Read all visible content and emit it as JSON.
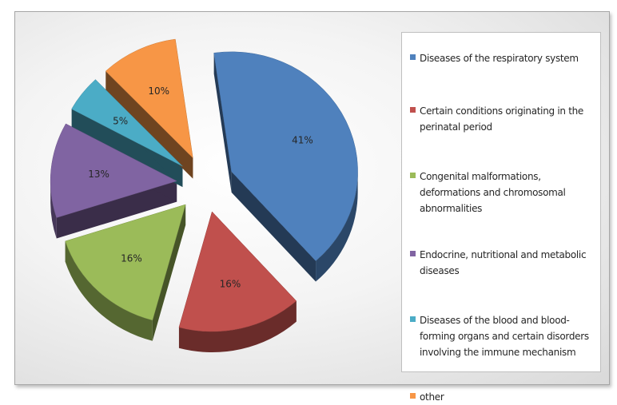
{
  "chart_data": {
    "type": "pie",
    "style": "3d-exploded",
    "legend_position": "right",
    "slices": [
      {
        "label": "Diseases of the respiratory system",
        "value": 41,
        "display": "41%",
        "color": "#4f81bd"
      },
      {
        "label": "Certain conditions originating in the perinatal period",
        "value": 16,
        "display": "16%",
        "color": "#c0504d"
      },
      {
        "label": "Congenital malformations, deformations and chromosomal abnormalities",
        "value": 16,
        "display": "16%",
        "color": "#9bbb59"
      },
      {
        "label": "Endocrine, nutritional and metabolic diseases",
        "value": 13,
        "display": "13%",
        "color": "#8064a2"
      },
      {
        "label": "Diseases of the blood and blood-forming organs and certain disorders involving the immune mechanism",
        "value": 5,
        "display": "5%",
        "color": "#4bacc6"
      },
      {
        "label": "other",
        "value": 10,
        "display": "10%",
        "color": "#f79646"
      }
    ]
  },
  "legend": {
    "items": [
      {
        "lines": [
          "Diseases of the respiratory system"
        ]
      },
      {
        "lines": [
          "Certain conditions originating in the",
          "perinatal period"
        ]
      },
      {
        "lines": [
          "Congenital malformations,",
          "deformations and chromosomal",
          "abnormalities"
        ]
      },
      {
        "lines": [
          "Endocrine, nutritional and metabolic",
          "diseases"
        ]
      },
      {
        "lines": [
          "Diseases of the blood and blood-",
          "forming organs and certain disorders",
          "involving the immune mechanism"
        ]
      },
      {
        "lines": [
          "other"
        ]
      }
    ]
  }
}
